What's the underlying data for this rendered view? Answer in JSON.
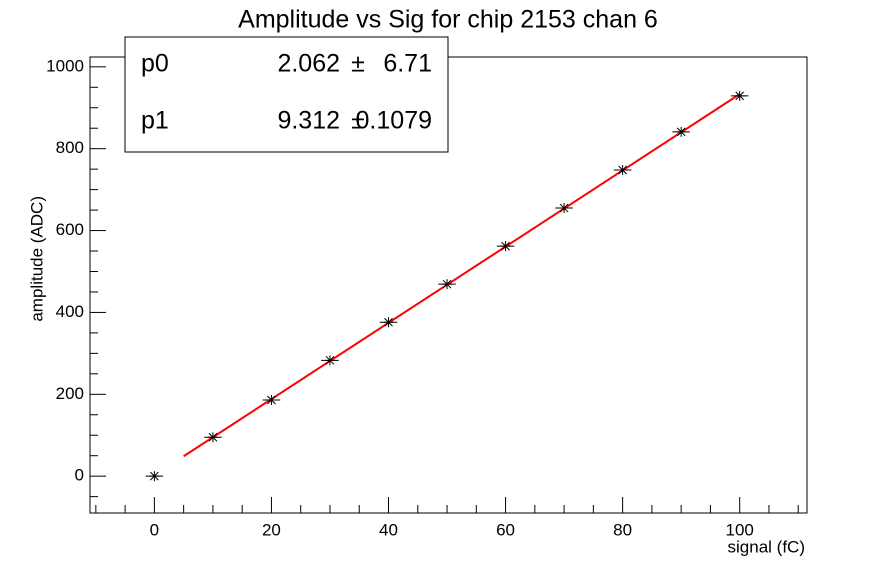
{
  "chart_data": {
    "type": "scatter",
    "title": "Amplitude vs Sig for chip 2153 chan 6",
    "x_label": "signal (fC)",
    "y_label": "amplitude (ADC)",
    "x": [
      0,
      10,
      20,
      30,
      40,
      50,
      60,
      70,
      80,
      90,
      100
    ],
    "series": [
      {
        "name": "amplitude",
        "color": "#000000",
        "values": [
          0,
          95,
          186,
          283,
          376,
          469,
          562,
          655,
          748,
          841,
          929
        ],
        "x_errors": [
          1.5,
          1.5,
          1.5,
          1.5,
          1.5,
          1.5,
          1.5,
          1.5,
          1.5,
          1.5,
          1.5
        ]
      }
    ],
    "fit": {
      "color": "#ff0000",
      "range": [
        5,
        100
      ],
      "params": [
        {
          "name": "p0",
          "value": 2.062,
          "error": 6.71
        },
        {
          "name": "p1",
          "value": 9.312,
          "error": 0.1079
        }
      ],
      "separator": "±"
    },
    "xlim": [
      -11,
      111.5
    ],
    "ylim": [
      -90,
      1024
    ],
    "xticks": [
      0,
      20,
      40,
      60,
      80,
      100
    ],
    "yticks": [
      0,
      200,
      400,
      600,
      800,
      1000
    ],
    "xminor": [
      -10,
      -5,
      5,
      10,
      15,
      25,
      30,
      35,
      45,
      50,
      55,
      65,
      70,
      75,
      85,
      90,
      95,
      105,
      110
    ],
    "yminor": [
      -50,
      50,
      100,
      150,
      250,
      300,
      350,
      450,
      500,
      550,
      650,
      700,
      750,
      850,
      900,
      950
    ]
  }
}
